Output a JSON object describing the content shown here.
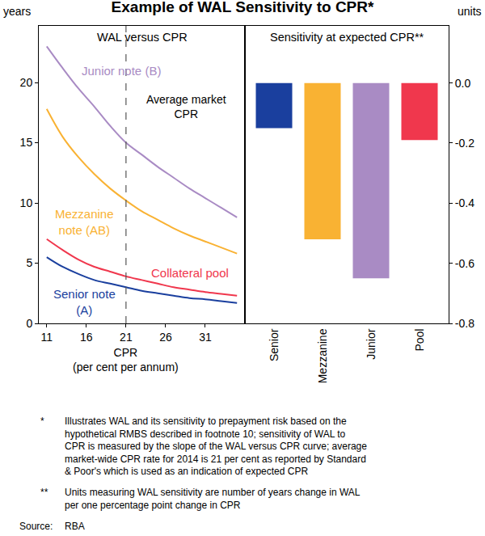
{
  "title": "Example of WAL Sensitivity to CPR*",
  "chart_data": [
    {
      "type": "line",
      "title": "WAL versus CPR",
      "y_label": "years",
      "x_label": [
        "CPR",
        "(per cent per annum)"
      ],
      "x": [
        11,
        13,
        15,
        17,
        19,
        21,
        23,
        25,
        27,
        29,
        31,
        33,
        35
      ],
      "series": [
        {
          "name": "Junior note (B)",
          "color": "#a98bc4",
          "values": [
            23.0,
            21.2,
            19.5,
            18.0,
            16.4,
            15.0,
            14.0,
            13.0,
            12.1,
            11.2,
            10.4,
            9.6,
            8.8
          ]
        },
        {
          "name": "Mezzanine note (AB)",
          "color": "#f9b233",
          "values": [
            17.8,
            15.5,
            13.8,
            12.4,
            11.2,
            10.2,
            9.3,
            8.6,
            7.9,
            7.3,
            6.8,
            6.3,
            5.8
          ]
        },
        {
          "name": "Collateral pool",
          "color": "#f0374d",
          "values": [
            7.0,
            6.1,
            5.3,
            4.7,
            4.3,
            3.9,
            3.6,
            3.3,
            3.0,
            2.8,
            2.6,
            2.45,
            2.3
          ]
        },
        {
          "name": "Senior note (A)",
          "color": "#1a3f9e",
          "values": [
            5.5,
            4.7,
            4.1,
            3.6,
            3.3,
            3.0,
            2.7,
            2.5,
            2.3,
            2.1,
            2.0,
            1.85,
            1.7
          ]
        }
      ],
      "xlim": [
        10,
        36
      ],
      "xticks": [
        11,
        16,
        21,
        26,
        31
      ],
      "ylim": [
        0,
        24.7
      ],
      "yticks": [
        0,
        5,
        10,
        15,
        20
      ],
      "grid": false,
      "annotations": [
        {
          "text": [
            "Average market",
            "CPR"
          ],
          "x": 21,
          "line_style": "dashed"
        }
      ]
    },
    {
      "type": "bar",
      "title": "Sensitivity at expected CPR**",
      "y_label": "units",
      "categories": [
        "Senior",
        "Mezzanine",
        "Junior",
        "Pool"
      ],
      "values": [
        -0.15,
        -0.52,
        -0.65,
        -0.19
      ],
      "colors": [
        "#1a3f9e",
        "#f9b233",
        "#a98bc4",
        "#f0374d"
      ],
      "ylim": [
        -0.8,
        0.19
      ],
      "yticks": [
        {
          "value": -0.8,
          "label": "-0.8"
        },
        {
          "value": -0.6,
          "label": "-0.6"
        },
        {
          "value": -0.4,
          "label": "-0.4"
        },
        {
          "value": -0.2,
          "label": "-0.2"
        },
        {
          "value": 0,
          "label": "0.0"
        }
      ],
      "grid": false
    }
  ],
  "footnotes": [
    {
      "marker": "*",
      "lines": [
        "Illustrates WAL and its sensitivity to prepayment risk based on the",
        "hypothetical RMBS described in footnote 10; sensitivity of WAL to",
        "CPR is measured by the slope of the WAL versus CPR curve; average",
        "market-wide CPR rate for 2014 is 21 per cent as reported by Standard",
        "& Poor's which is used as an indication of expected CPR"
      ]
    },
    {
      "marker": "**",
      "lines": [
        "Units measuring WAL sensitivity are number of years change in WAL",
        "per one percentage point change in CPR"
      ]
    }
  ],
  "source": {
    "label": "Source:",
    "text": "RBA"
  }
}
